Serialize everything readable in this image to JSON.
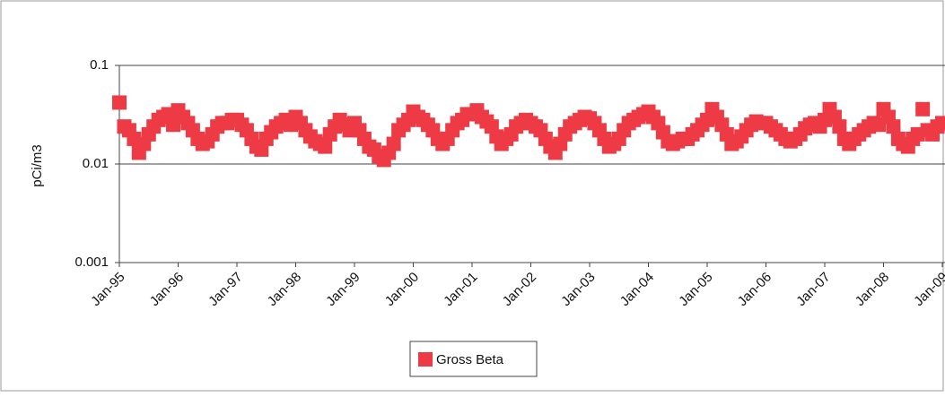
{
  "chart_data": {
    "type": "scatter",
    "y_label": "pCi/m3",
    "log_y": true,
    "grid": true,
    "legend": "bottom",
    "series": [
      {
        "name": "Gross Beta",
        "color": "#ee3a45",
        "x": [
          "1995-01",
          "1995-02",
          "1995-03",
          "1995-04",
          "1995-05",
          "1995-06",
          "1995-07",
          "1995-08",
          "1995-09",
          "1995-10",
          "1995-11",
          "1995-12",
          "1996-01",
          "1996-02",
          "1996-03",
          "1996-04",
          "1996-05",
          "1996-06",
          "1996-07",
          "1996-08",
          "1996-09",
          "1996-10",
          "1996-11",
          "1996-12",
          "1997-01",
          "1997-02",
          "1997-03",
          "1997-04",
          "1997-05",
          "1997-06",
          "1997-07",
          "1997-08",
          "1997-09",
          "1997-10",
          "1997-11",
          "1997-12",
          "1998-01",
          "1998-02",
          "1998-03",
          "1998-04",
          "1998-05",
          "1998-06",
          "1998-07",
          "1998-08",
          "1998-09",
          "1998-10",
          "1998-11",
          "1998-12",
          "1999-01",
          "1999-02",
          "1999-03",
          "1999-04",
          "1999-05",
          "1999-06",
          "1999-07",
          "1999-08",
          "1999-09",
          "1999-10",
          "1999-11",
          "1999-12",
          "2000-01",
          "2000-02",
          "2000-03",
          "2000-04",
          "2000-05",
          "2000-06",
          "2000-07",
          "2000-08",
          "2000-09",
          "2000-10",
          "2000-11",
          "2000-12",
          "2001-01",
          "2001-02",
          "2001-03",
          "2001-04",
          "2001-05",
          "2001-06",
          "2001-07",
          "2001-08",
          "2001-09",
          "2001-10",
          "2001-11",
          "2001-12",
          "2002-01",
          "2002-02",
          "2002-03",
          "2002-04",
          "2002-05",
          "2002-06",
          "2002-07",
          "2002-08",
          "2002-09",
          "2002-10",
          "2002-11",
          "2002-12",
          "2003-01",
          "2003-02",
          "2003-03",
          "2003-04",
          "2003-05",
          "2003-06",
          "2003-07",
          "2003-08",
          "2003-09",
          "2003-10",
          "2003-11",
          "2003-12",
          "2004-01",
          "2004-02",
          "2004-03",
          "2004-04",
          "2004-05",
          "2004-06",
          "2004-07",
          "2004-08",
          "2004-09",
          "2004-10",
          "2004-11",
          "2004-12",
          "2005-01",
          "2005-02",
          "2005-03",
          "2005-04",
          "2005-05",
          "2005-06",
          "2005-07",
          "2005-08",
          "2005-09",
          "2005-10",
          "2005-11",
          "2005-12",
          "2006-01",
          "2006-02",
          "2006-03",
          "2006-04",
          "2006-05",
          "2006-06",
          "2006-07",
          "2006-08",
          "2006-09",
          "2006-10",
          "2006-11",
          "2006-12",
          "2007-01",
          "2007-02",
          "2007-03",
          "2007-04",
          "2007-05",
          "2007-06",
          "2007-07",
          "2007-08",
          "2007-09",
          "2007-10",
          "2007-11",
          "2007-12",
          "2008-01",
          "2008-02",
          "2008-03",
          "2008-04",
          "2008-05",
          "2008-06",
          "2008-07",
          "2008-08",
          "2008-09",
          "2008-10",
          "2008-11",
          "2008-12",
          "2009-01"
        ],
        "values": [
          0.042,
          0.024,
          0.022,
          0.018,
          0.013,
          0.016,
          0.02,
          0.024,
          0.028,
          0.03,
          0.032,
          0.025,
          0.035,
          0.03,
          0.026,
          0.022,
          0.018,
          0.016,
          0.017,
          0.02,
          0.024,
          0.026,
          0.026,
          0.028,
          0.028,
          0.025,
          0.022,
          0.018,
          0.015,
          0.014,
          0.018,
          0.021,
          0.024,
          0.026,
          0.028,
          0.025,
          0.03,
          0.026,
          0.022,
          0.019,
          0.017,
          0.016,
          0.015,
          0.02,
          0.024,
          0.028,
          0.025,
          0.022,
          0.026,
          0.022,
          0.018,
          0.015,
          0.014,
          0.012,
          0.011,
          0.013,
          0.016,
          0.022,
          0.025,
          0.028,
          0.034,
          0.03,
          0.028,
          0.025,
          0.022,
          0.018,
          0.016,
          0.018,
          0.022,
          0.026,
          0.028,
          0.032,
          0.032,
          0.035,
          0.03,
          0.027,
          0.024,
          0.019,
          0.016,
          0.018,
          0.02,
          0.024,
          0.026,
          0.028,
          0.026,
          0.024,
          0.022,
          0.018,
          0.015,
          0.013,
          0.016,
          0.02,
          0.024,
          0.026,
          0.028,
          0.03,
          0.029,
          0.026,
          0.022,
          0.018,
          0.015,
          0.016,
          0.018,
          0.022,
          0.026,
          0.028,
          0.03,
          0.032,
          0.034,
          0.03,
          0.026,
          0.021,
          0.017,
          0.016,
          0.017,
          0.018,
          0.018,
          0.02,
          0.022,
          0.025,
          0.028,
          0.036,
          0.03,
          0.025,
          0.02,
          0.016,
          0.017,
          0.019,
          0.022,
          0.025,
          0.027,
          0.026,
          0.026,
          0.024,
          0.022,
          0.02,
          0.018,
          0.017,
          0.018,
          0.02,
          0.023,
          0.025,
          0.026,
          0.024,
          0.028,
          0.036,
          0.03,
          0.024,
          0.018,
          0.016,
          0.018,
          0.02,
          0.022,
          0.024,
          0.026,
          0.025,
          0.036,
          0.03,
          0.024,
          0.018,
          0.016,
          0.015,
          0.018,
          0.02,
          0.036,
          0.022,
          0.02,
          0.024,
          0.026
        ]
      }
    ],
    "xlim": [
      "1995-01",
      "2009-01"
    ],
    "xticks": [
      {
        "value": "1995-01",
        "label": "Jan-95"
      },
      {
        "value": "1996-01",
        "label": "Jan-96"
      },
      {
        "value": "1997-01",
        "label": "Jan-97"
      },
      {
        "value": "1998-01",
        "label": "Jan-98"
      },
      {
        "value": "1999-01",
        "label": "Jan-99"
      },
      {
        "value": "2000-01",
        "label": "Jan-00"
      },
      {
        "value": "2001-01",
        "label": "Jan-01"
      },
      {
        "value": "2002-01",
        "label": "Jan-02"
      },
      {
        "value": "2003-01",
        "label": "Jan-03"
      },
      {
        "value": "2004-01",
        "label": "Jan-04"
      },
      {
        "value": "2005-01",
        "label": "Jan-05"
      },
      {
        "value": "2006-01",
        "label": "Jan-06"
      },
      {
        "value": "2007-01",
        "label": "Jan-07"
      },
      {
        "value": "2008-01",
        "label": "Jan-08"
      },
      {
        "value": "2009-01",
        "label": "Jan-09"
      }
    ],
    "ylim": [
      0.001,
      0.1
    ],
    "yticks": [
      0.001,
      0.01,
      0.1
    ]
  }
}
